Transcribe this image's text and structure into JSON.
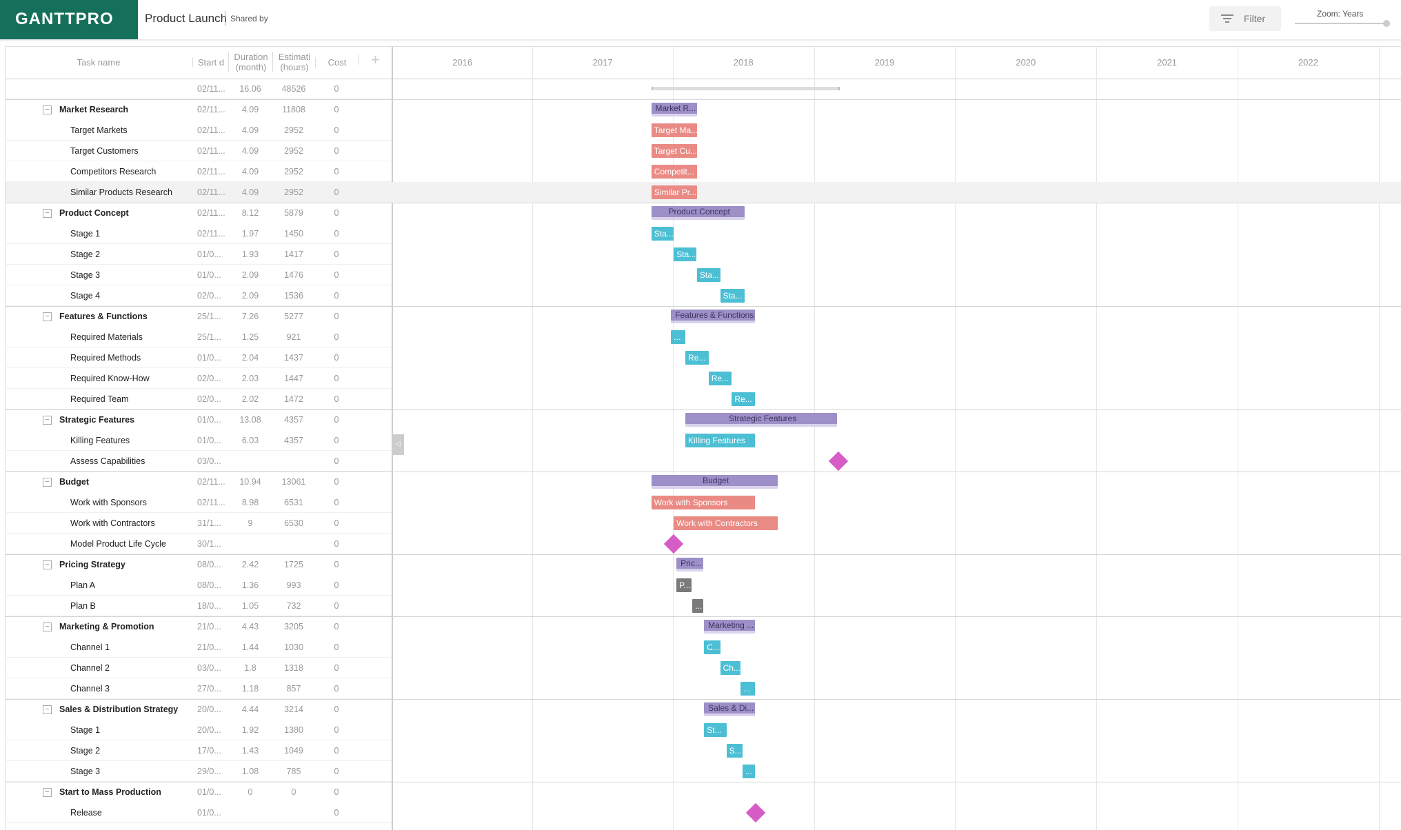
{
  "header": {
    "logo": "GANTTPRO",
    "project": "Product Launch",
    "shared": "Shared by",
    "filter": "Filter",
    "zoom": "Zoom: Years"
  },
  "columns": [
    "Task name",
    "Start d",
    "Duration (month)",
    "Estimati (hours)",
    "Cost"
  ],
  "years": [
    "2016",
    "2017",
    "2018",
    "2019",
    "2020",
    "2021",
    "2022"
  ],
  "rows": [
    {
      "start": "02/11...",
      "duration": "16.06",
      "estimate": "48526",
      "cost": "0"
    },
    {
      "name": "Market Research",
      "group": true,
      "start": "02/11...",
      "duration": "4.09",
      "estimate": "11808",
      "cost": "0",
      "bar": "Market R..."
    },
    {
      "name": "Target Markets",
      "start": "02/11...",
      "duration": "4.09",
      "estimate": "2952",
      "cost": "0",
      "bar": "Target Ma..."
    },
    {
      "name": "Target Customers",
      "start": "02/11...",
      "duration": "4.09",
      "estimate": "2952",
      "cost": "0",
      "bar": "Target Cu..."
    },
    {
      "name": "Competitors Research",
      "start": "02/11...",
      "duration": "4.09",
      "estimate": "2952",
      "cost": "0",
      "bar": "Competit..."
    },
    {
      "name": "Similar Products Research",
      "start": "02/11...",
      "duration": "4.09",
      "estimate": "2952",
      "cost": "0",
      "bar": "Similar Pr..."
    },
    {
      "name": "Product Concept",
      "group": true,
      "start": "02/11...",
      "duration": "8.12",
      "estimate": "5879",
      "cost": "0",
      "bar": "Product Concept"
    },
    {
      "name": "Stage 1",
      "start": "02/11...",
      "duration": "1.97",
      "estimate": "1450",
      "cost": "0",
      "bar": "Sta..."
    },
    {
      "name": "Stage 2",
      "start": "01/0...",
      "duration": "1.93",
      "estimate": "1417",
      "cost": "0",
      "bar": "Sta..."
    },
    {
      "name": "Stage 3",
      "start": "01/0...",
      "duration": "2.09",
      "estimate": "1476",
      "cost": "0",
      "bar": "Sta..."
    },
    {
      "name": "Stage 4",
      "start": "02/0...",
      "duration": "2.09",
      "estimate": "1536",
      "cost": "0",
      "bar": "Sta..."
    },
    {
      "name": "Features & Functions",
      "group": true,
      "start": "25/1...",
      "duration": "7.26",
      "estimate": "5277",
      "cost": "0",
      "bar": "Features & Functions"
    },
    {
      "name": "Required Materials",
      "start": "25/1...",
      "duration": "1.25",
      "estimate": "921",
      "cost": "0",
      "bar": "..."
    },
    {
      "name": "Required Methods",
      "start": "01/0...",
      "duration": "2.04",
      "estimate": "1437",
      "cost": "0",
      "bar": "Re..."
    },
    {
      "name": "Required Know-How",
      "start": "02/0...",
      "duration": "2.03",
      "estimate": "1447",
      "cost": "0",
      "bar": "Re..."
    },
    {
      "name": "Required Team",
      "start": "02/0...",
      "duration": "2.02",
      "estimate": "1472",
      "cost": "0",
      "bar": "Re..."
    },
    {
      "name": "Strategic Features",
      "group": true,
      "start": "01/0...",
      "duration": "13.08",
      "estimate": "4357",
      "cost": "0",
      "bar": "Strategic Features"
    },
    {
      "name": "Killing Features",
      "start": "01/0...",
      "duration": "6.03",
      "estimate": "4357",
      "cost": "0",
      "bar": "Killing Features"
    },
    {
      "name": "Assess Capabilities",
      "start": "03/0...",
      "cost": "0"
    },
    {
      "name": "Budget",
      "group": true,
      "start": "02/11...",
      "duration": "10.94",
      "estimate": "13061",
      "cost": "0",
      "bar": "Budget"
    },
    {
      "name": "Work with Sponsors",
      "start": "02/11...",
      "duration": "8.98",
      "estimate": "6531",
      "cost": "0",
      "bar": "Work with Sponsors"
    },
    {
      "name": "Work with Contractors",
      "start": "31/1...",
      "duration": "9",
      "estimate": "6530",
      "cost": "0",
      "bar": "Work with Contractors"
    },
    {
      "name": "Model Product Life Cycle",
      "start": "30/1...",
      "cost": "0"
    },
    {
      "name": "Pricing Strategy",
      "group": true,
      "start": "08/0...",
      "duration": "2.42",
      "estimate": "1725",
      "cost": "0",
      "bar": "Pric..."
    },
    {
      "name": "Plan A",
      "start": "08/0...",
      "duration": "1.36",
      "estimate": "993",
      "cost": "0",
      "bar": "P..."
    },
    {
      "name": "Plan B",
      "start": "18/0...",
      "duration": "1.05",
      "estimate": "732",
      "cost": "0",
      "bar": "..."
    },
    {
      "name": "Marketing & Promotion",
      "group": true,
      "start": "21/0...",
      "duration": "4.43",
      "estimate": "3205",
      "cost": "0",
      "bar": "Marketing ..."
    },
    {
      "name": "Channel 1",
      "start": "21/0...",
      "duration": "1.44",
      "estimate": "1030",
      "cost": "0",
      "bar": "C..."
    },
    {
      "name": "Channel 2",
      "start": "03/0...",
      "duration": "1.8",
      "estimate": "1318",
      "cost": "0",
      "bar": "Ch..."
    },
    {
      "name": "Channel 3",
      "start": "27/0...",
      "duration": "1.18",
      "estimate": "857",
      "cost": "0",
      "bar": "..."
    },
    {
      "name": "Sales & Distribution Strategy",
      "group": true,
      "start": "20/0...",
      "duration": "4.44",
      "estimate": "3214",
      "cost": "0",
      "bar": "Sales & Di..."
    },
    {
      "name": "Stage 1",
      "start": "20/0...",
      "duration": "1.92",
      "estimate": "1380",
      "cost": "0",
      "bar": "St..."
    },
    {
      "name": "Stage 2",
      "start": "17/0...",
      "duration": "1.43",
      "estimate": "1049",
      "cost": "0",
      "bar": "S..."
    },
    {
      "name": "Stage 3",
      "start": "29/0...",
      "duration": "1.08",
      "estimate": "785",
      "cost": "0",
      "bar": "..."
    },
    {
      "name": "Start to Mass Production",
      "group": true,
      "start": "01/0...",
      "duration": "0",
      "estimate": "0",
      "cost": "0"
    },
    {
      "name": "Release",
      "start": "01/0...",
      "cost": "0"
    }
  ]
}
